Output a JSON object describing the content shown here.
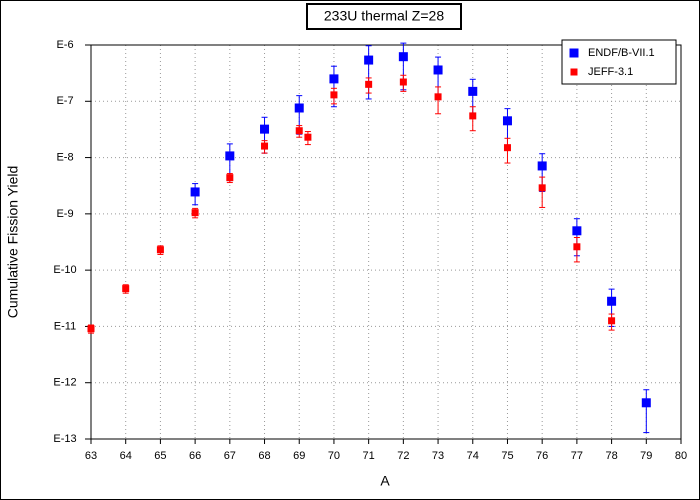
{
  "chart_data": {
    "type": "scatter",
    "title": "233U thermal Z=28",
    "x_label": "A",
    "y_label": "Cumulative Fission Yield",
    "xlim": [
      63,
      80
    ],
    "xticks": [
      63,
      64,
      65,
      66,
      67,
      68,
      69,
      70,
      71,
      72,
      73,
      74,
      75,
      76,
      77,
      78,
      79,
      80
    ],
    "ylim": [
      1e-13,
      1e-06
    ],
    "yscale": "log",
    "yticks": [
      {
        "value": 1e-13,
        "label": "E-13"
      },
      {
        "value": 1e-12,
        "label": "E-12"
      },
      {
        "value": 1e-11,
        "label": "E-11"
      },
      {
        "value": 1e-10,
        "label": "E-10"
      },
      {
        "value": 1e-09,
        "label": "E-9"
      },
      {
        "value": 1e-08,
        "label": "E-8"
      },
      {
        "value": 1e-07,
        "label": "E-7"
      },
      {
        "value": 1e-06,
        "label": "E-6"
      }
    ],
    "grid": true,
    "legend": "upper right",
    "series": [
      {
        "name": "ENDF/B-VII.1",
        "color": "#0000ff",
        "x": [
          66,
          67,
          68,
          69,
          70,
          71,
          72,
          73,
          74,
          75,
          76,
          77,
          78,
          79
        ],
        "values": [
          2.45e-09,
          1.07e-08,
          3.2e-08,
          7.6e-08,
          2.5e-07,
          5.4e-07,
          6.2e-07,
          3.6e-07,
          1.5e-07,
          4.5e-08,
          7.1e-09,
          5e-10,
          2.8e-11,
          4.4e-13
        ],
        "errors": [
          1e-09,
          6.8e-09,
          2e-08,
          5e-08,
          1.7e-07,
          4.3e-07,
          4.6e-07,
          2.5e-07,
          9.6e-08,
          2.9e-08,
          4.6e-09,
          3.2e-10,
          1.8e-11,
          3.1e-13
        ]
      },
      {
        "name": "JEFF-3.1",
        "color": "#ff0000",
        "x": [
          63,
          64,
          65,
          66,
          67,
          68,
          69,
          69.25,
          70,
          71,
          72,
          73,
          74,
          75,
          76,
          77,
          78
        ],
        "values": [
          9.1e-12,
          4.7e-11,
          2.3e-10,
          1.05e-09,
          4.4e-09,
          1.6e-08,
          3e-08,
          2.3e-08,
          1.3e-07,
          2e-07,
          2.2e-07,
          1.2e-07,
          5.5e-08,
          1.5e-08,
          2.9e-09,
          2.6e-10,
          1.26e-11
        ],
        "errors": [
          1.5e-12,
          8e-12,
          4e-11,
          2e-10,
          8e-10,
          4e-09,
          7e-09,
          6e-09,
          4e-08,
          6e-08,
          7e-08,
          6e-08,
          2.5e-08,
          7e-09,
          1.6e-09,
          1.2e-10,
          4e-12
        ]
      }
    ]
  }
}
